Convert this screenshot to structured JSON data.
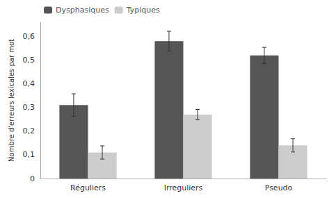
{
  "chart_data": {
    "type": "bar",
    "categories": [
      "Réguliers",
      "Irreguliers",
      "Pseudo"
    ],
    "series": [
      {
        "name": "Dysphasiques",
        "color": "#555555",
        "values": [
          0.31,
          0.58,
          0.52
        ],
        "errors": [
          0.048,
          0.042,
          0.034
        ]
      },
      {
        "name": "Typiques",
        "color": "#cccccc",
        "values": [
          0.11,
          0.27,
          0.14
        ],
        "errors": [
          0.028,
          0.022,
          0.028
        ]
      }
    ],
    "ylabel": "Nombre d'erreurs lexicales par mot",
    "ylim": [
      0,
      0.66
    ],
    "yticks": [
      0,
      {
        "value": 0.1,
        "label": "0,1"
      },
      {
        "value": 0.2,
        "label": "0,2"
      },
      {
        "value": 0.3,
        "label": "0,3"
      },
      {
        "value": 0.4,
        "label": "0,4"
      },
      {
        "value": 0.5,
        "label": "0,5"
      },
      {
        "value": 0.6,
        "label": "0,6"
      }
    ],
    "grid": false,
    "legend": "upper left"
  }
}
